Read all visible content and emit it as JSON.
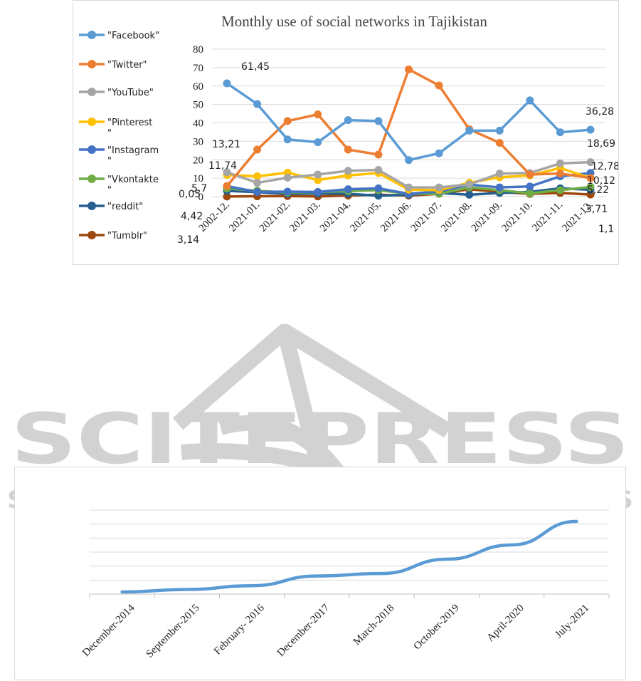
{
  "colors": {
    "Facebook": "#5b9bd5",
    "Twitter": "#ed7d31",
    "YouTube": "#a5a5a5",
    "Pinterest": "#ffc000",
    "Instagram": "#4472c4",
    "Vkontakte": "#70ad47",
    "reddit": "#255e91",
    "Tumblr": "#9e480e",
    "growth_line": "#5b9bd5",
    "watermark": "#d2d2d2"
  },
  "watermark": {
    "main": "SCITEPRESS",
    "sub": "SCIENCE AND TECHNOLOGY PUBLICATIONS"
  },
  "chart_data": [
    {
      "type": "line",
      "title": "Monthly use of social networks in Tajikistan",
      "categories": [
        "2002-12.",
        "2021-01.",
        "2021-02.",
        "2021-03.",
        "2021-04.",
        "2021-05.",
        "2021-06.",
        "2021-07.",
        "2021-08.",
        "2021-09.",
        "2021-10.",
        "2021-11.",
        "2021-12."
      ],
      "ylim": [
        0,
        80
      ],
      "yticks": [
        "0",
        "10",
        "20",
        "30",
        "40",
        "50",
        "60",
        "70",
        "80"
      ],
      "grid": true,
      "legend_position": "left",
      "series": [
        {
          "name": "Facebook",
          "legend_label": "\"Facebook\"",
          "values": [
            61.45,
            50.2,
            31,
            29.5,
            41.5,
            41,
            19.8,
            23.5,
            35.8,
            35.8,
            52.2,
            34.9,
            36.28
          ]
        },
        {
          "name": "Twitter",
          "legend_label": "\"Twitter\"",
          "values": [
            5.7,
            25.5,
            41,
            44.6,
            25.5,
            22.8,
            69,
            60.3,
            36.5,
            29.2,
            12,
            12.5,
            10.12
          ]
        },
        {
          "name": "YouTube",
          "legend_label": "\"YouTube\"",
          "values": [
            13.21,
            7.5,
            10.3,
            12,
            14,
            14.5,
            5,
            5,
            6.6,
            12.5,
            12.8,
            18,
            18.69
          ]
        },
        {
          "name": "Pinterest",
          "legend_label": "\"Pinterest\"",
          "values": [
            11.74,
            11,
            13,
            9,
            11.5,
            12.8,
            3.8,
            3.5,
            7.5,
            10.5,
            11.5,
            15.5,
            10.12
          ]
        },
        {
          "name": "Instagram",
          "legend_label": "\"Instagram\"",
          "values": [
            5.7,
            2.5,
            2.7,
            2.5,
            4,
            4.5,
            1.5,
            2.8,
            6.5,
            5,
            5.5,
            11,
            12.78
          ]
        },
        {
          "name": "Vkontakte",
          "legend_label": "\"Vkontakte\"",
          "values": [
            4.42,
            3.2,
            2.2,
            2.5,
            3,
            3.5,
            1.5,
            1.5,
            5,
            3.5,
            1.8,
            3.5,
            5.22
          ]
        },
        {
          "name": "reddit",
          "legend_label": "\"reddit\"",
          "values": [
            3.14,
            2.4,
            1.5,
            1.7,
            1.5,
            0.5,
            1,
            2,
            1,
            2,
            2.5,
            4.5,
            3.71
          ]
        },
        {
          "name": "Tumblr",
          "legend_label": "\"Tumblr\"",
          "values": [
            0.05,
            0.2,
            0.3,
            0.1,
            0.6,
            1,
            0.6,
            1.5,
            4,
            2.5,
            1.5,
            2,
            1.1
          ]
        }
      ],
      "data_labels": {
        "Facebook_first": "61,45",
        "YouTube_first": "13,21",
        "Pinterest_first": "11,74",
        "Instagram_first": "5,7",
        "Tumblr_first": "0,05",
        "Vkontakte_first": "4,42",
        "reddit_first": "3,14",
        "Facebook_last": "36,28",
        "YouTube_last": "18,69",
        "Instagram_last": "12,78",
        "Twitter_last": "10,12",
        "Vkontakte_last": "5,22",
        "reddit_last": "3,71",
        "Tumblr_last": "1,1"
      }
    },
    {
      "type": "line",
      "title": "",
      "categories": [
        "December-2014",
        "September-2015",
        "February- 2016",
        "December-2017",
        "March-2018",
        "October-2019",
        "April-2020",
        "July-2021"
      ],
      "values": [
        0.5,
        1.1,
        2,
        4.3,
        4.9,
        8.3,
        11.7,
        17.3
      ],
      "ylim": [
        0,
        20
      ],
      "gridlines": 6,
      "ytick_labels_visible": false,
      "legend": "none"
    }
  ]
}
